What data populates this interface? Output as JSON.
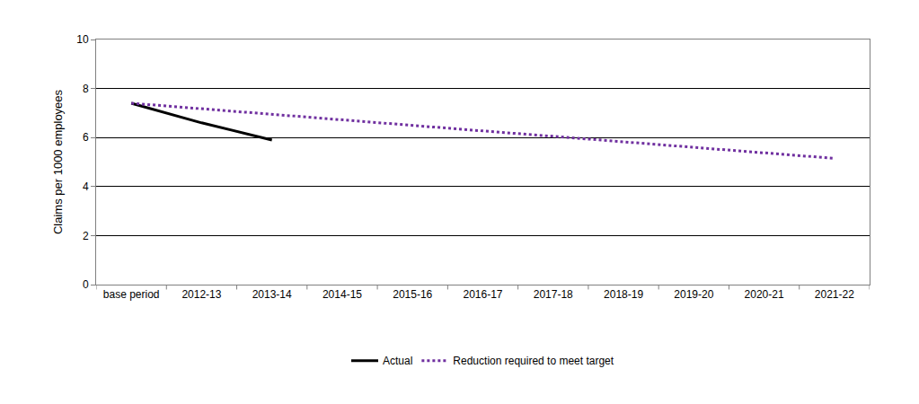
{
  "chart_data": {
    "type": "line",
    "y_label": "Claims per 1000 employees",
    "categories": [
      "base period",
      "2012-13",
      "2013-14",
      "2014-15",
      "2015-16",
      "2016-17",
      "2017-18",
      "2018-19",
      "2019-20",
      "2020-21",
      "2021-22"
    ],
    "series": [
      {
        "name": "Actual",
        "color": "#000000",
        "line_style": "solid",
        "values": [
          7.4,
          6.6,
          5.9,
          null,
          null,
          null,
          null,
          null,
          null,
          null,
          null
        ]
      },
      {
        "name": "Reduction required to meet target",
        "color": "#7030a0",
        "line_style": "dotted",
        "values": [
          7.4,
          7.17,
          6.95,
          6.72,
          6.5,
          6.27,
          6.05,
          5.82,
          5.6,
          5.37,
          5.15
        ]
      }
    ],
    "ylim": [
      0,
      10
    ],
    "yticks": [
      0,
      2,
      4,
      6,
      8,
      10
    ],
    "grid": true,
    "legend": "bottom"
  }
}
